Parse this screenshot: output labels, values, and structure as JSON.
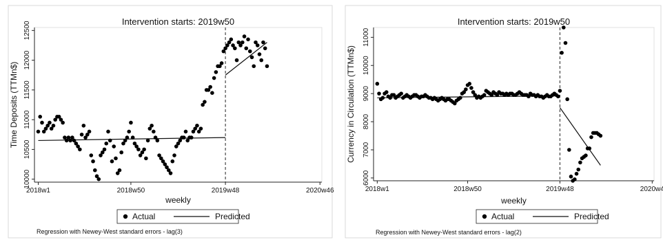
{
  "chart_data": [
    {
      "type": "line",
      "title": "Intervention starts: 2019w50",
      "xlabel": "weekly",
      "ylabel": "Time Deposits (TTMn$)",
      "ylim": [
        9950,
        12550
      ],
      "yticks": [
        10000,
        10500,
        11000,
        11500,
        12000,
        12500
      ],
      "xticks": [
        {
          "label": "2018w1",
          "t": 1
        },
        {
          "label": "2018w50",
          "t": 50
        },
        {
          "label": "2019w48",
          "t": 100
        },
        {
          "label": "2020w46",
          "t": 150
        }
      ],
      "xlim": [
        -1,
        151
      ],
      "intervention_t": 100,
      "grid": false,
      "legend_position": "bottom",
      "note": "Regression with Newey-West standard errors - lag(3)",
      "series": [
        {
          "name": "Actual",
          "kind": "scatter",
          "x": [
            1,
            2,
            3,
            4,
            5,
            6,
            7,
            8,
            9,
            10,
            11,
            12,
            13,
            14,
            15,
            16,
            17,
            18,
            19,
            20,
            21,
            22,
            23,
            24,
            25,
            26,
            27,
            28,
            29,
            30,
            31,
            32,
            33,
            34,
            35,
            36,
            37,
            38,
            39,
            40,
            41,
            42,
            43,
            44,
            45,
            46,
            47,
            48,
            49,
            50,
            51,
            52,
            53,
            54,
            55,
            56,
            57,
            58,
            59,
            60,
            61,
            62,
            63,
            64,
            65,
            66,
            67,
            68,
            69,
            70,
            71,
            72,
            73,
            74,
            75,
            76,
            77,
            78,
            79,
            80,
            81,
            82,
            83,
            84,
            85,
            86,
            87,
            88,
            89,
            90,
            91,
            92,
            93,
            94,
            95,
            96,
            97,
            98,
            99,
            100,
            101,
            102,
            103,
            104,
            105,
            106,
            107,
            108,
            109,
            110,
            111,
            112,
            113,
            114,
            115,
            116,
            117,
            118,
            119,
            120,
            121,
            122
          ],
          "y": [
            10800,
            11050,
            10950,
            10800,
            10850,
            10900,
            10950,
            10850,
            10900,
            11000,
            11050,
            11050,
            11000,
            10950,
            10700,
            10650,
            10700,
            10650,
            10700,
            10650,
            10600,
            10550,
            10500,
            10750,
            10900,
            10700,
            10750,
            10800,
            10400,
            10300,
            10150,
            10050,
            10000,
            10400,
            10450,
            10500,
            10600,
            10800,
            10650,
            10300,
            10550,
            10350,
            10100,
            10150,
            10450,
            10600,
            10650,
            10700,
            10800,
            10950,
            10700,
            10600,
            10550,
            10500,
            10400,
            10450,
            10500,
            10350,
            10650,
            10850,
            10900,
            10800,
            10700,
            10650,
            10400,
            10350,
            10300,
            10250,
            10200,
            10150,
            10100,
            10300,
            10400,
            10550,
            10600,
            10650,
            10700,
            10700,
            10800,
            10650,
            10700,
            10700,
            10800,
            10850,
            10900,
            10800,
            10850,
            11250,
            11300,
            11500,
            11500,
            11550,
            11450,
            11700,
            11800,
            11900,
            11900,
            11950,
            12150,
            12200,
            12250,
            12300,
            12350,
            12250,
            12200,
            12000,
            12300,
            12250,
            12300,
            12400,
            12200,
            12350,
            12150,
            12050,
            11900,
            12300,
            12250,
            12100,
            12000,
            12300,
            12200,
            11900
          ]
        },
        {
          "name": "Predicted",
          "kind": "line",
          "segments": [
            {
              "x": [
                1,
                100
              ],
              "y": [
                10650,
                10700
              ]
            },
            {
              "x": [
                100,
                122
              ],
              "y": [
                11750,
                12300
              ]
            }
          ]
        }
      ]
    },
    {
      "type": "line",
      "title": "Intervention starts: 2019w50",
      "xlabel": "weekly",
      "ylabel": "Currency in Circulation (TTMn$)",
      "ylim": [
        5900,
        11350
      ],
      "yticks": [
        6000,
        7000,
        8000,
        9000,
        10000,
        11000
      ],
      "xticks": [
        {
          "label": "2018w1",
          "t": 1
        },
        {
          "label": "2018w50",
          "t": 50
        },
        {
          "label": "2019w48",
          "t": 100
        },
        {
          "label": "2020w4",
          "t": 150
        }
      ],
      "xlim": [
        -1,
        151
      ],
      "intervention_t": 100,
      "grid": false,
      "legend_position": "bottom",
      "note": "Regression with Newey-West standard errors - lag(2)",
      "series": [
        {
          "name": "Actual",
          "kind": "scatter",
          "x": [
            1,
            2,
            3,
            4,
            5,
            6,
            7,
            8,
            9,
            10,
            11,
            12,
            13,
            14,
            15,
            16,
            17,
            18,
            19,
            20,
            21,
            22,
            23,
            24,
            25,
            26,
            27,
            28,
            29,
            30,
            31,
            32,
            33,
            34,
            35,
            36,
            37,
            38,
            39,
            40,
            41,
            42,
            43,
            44,
            45,
            46,
            47,
            48,
            49,
            50,
            51,
            52,
            53,
            54,
            55,
            56,
            57,
            58,
            59,
            60,
            61,
            62,
            63,
            64,
            65,
            66,
            67,
            68,
            69,
            70,
            71,
            72,
            73,
            74,
            75,
            76,
            77,
            78,
            79,
            80,
            81,
            82,
            83,
            84,
            85,
            86,
            87,
            88,
            89,
            90,
            91,
            92,
            93,
            94,
            95,
            96,
            97,
            98,
            99,
            100,
            101,
            102,
            103,
            104,
            105,
            106,
            107,
            108,
            109,
            110,
            111,
            112,
            113,
            114,
            115,
            116,
            117,
            118,
            119,
            120,
            121,
            122
          ],
          "y": [
            9350,
            9000,
            8800,
            8850,
            9000,
            9050,
            8900,
            8850,
            8950,
            8950,
            8850,
            8900,
            8950,
            9000,
            8850,
            8900,
            8950,
            8900,
            8850,
            8900,
            8950,
            8950,
            8900,
            8850,
            8900,
            8900,
            8950,
            8900,
            8850,
            8850,
            8800,
            8850,
            8800,
            8750,
            8800,
            8850,
            8800,
            8750,
            8800,
            8800,
            8750,
            8700,
            8650,
            8750,
            8800,
            8850,
            9000,
            9050,
            9150,
            9300,
            9350,
            9200,
            9050,
            8950,
            8850,
            8900,
            8850,
            8900,
            8950,
            9100,
            9050,
            9000,
            8950,
            9050,
            9000,
            8950,
            9050,
            9000,
            9000,
            8950,
            9000,
            8950,
            9000,
            9000,
            8950,
            8950,
            9000,
            9050,
            9000,
            8950,
            8950,
            8950,
            8900,
            9000,
            8950,
            8950,
            8900,
            8950,
            8900,
            8900,
            8850,
            8900,
            8950,
            8900,
            8900,
            8950,
            9000,
            8950,
            8900,
            9100,
            10450,
            11350,
            10800,
            8800,
            7000,
            6050,
            5900,
            5950,
            6150,
            6300,
            6550,
            6700,
            6750,
            6800,
            7050,
            7050,
            7450,
            7600,
            7600,
            7600,
            7550,
            7500
          ]
        },
        {
          "name": "Predicted",
          "kind": "line",
          "segments": [
            {
              "x": [
                1,
                100
              ],
              "y": [
                8850,
                8920
              ]
            },
            {
              "x": [
                100,
                122
              ],
              "y": [
                8500,
                6450
              ]
            }
          ]
        }
      ]
    }
  ]
}
